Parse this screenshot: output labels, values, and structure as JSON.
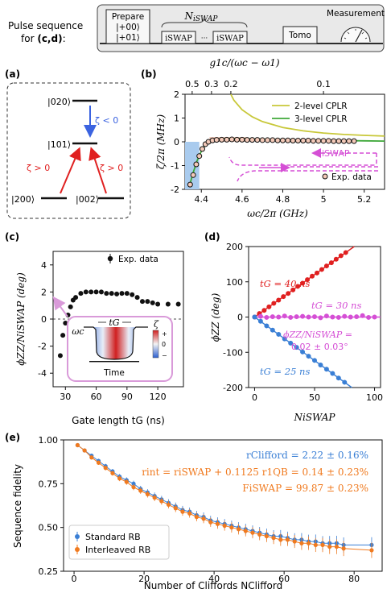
{
  "pulse_sequence": {
    "caption_line1": "Pulse sequence",
    "caption_line2": "for ",
    "caption_ref": "(c,d)",
    "caption_colon": ":",
    "prepare_label": "Prepare",
    "prepare_states": [
      "|+00⟩",
      "|+01⟩"
    ],
    "n_iswap_label": "N",
    "n_iswap_sub": "iSWAP",
    "iswap_gate": "iSWAP",
    "ellipsis": "···",
    "tomo_label": "Tomo",
    "measurement_label": "Measurement"
  },
  "panel_a": {
    "label": "(a)",
    "levels": [
      "|020⟩",
      "|101⟩",
      "|200⟩",
      "|002⟩"
    ],
    "zeta_neg": "ζ < 0",
    "zeta_pos_left": "ζ > 0",
    "zeta_pos_right": "ζ > 0",
    "colors": {
      "blue": "#3b63e0",
      "red": "#e02020"
    }
  },
  "panel_b": {
    "label": "(b)",
    "top_axis_label": "g1c/(ωc − ω1)",
    "annotation": "iSWAP",
    "chart_data": {
      "type": "line",
      "xlabel": "ωc/2π (GHz)",
      "ylabel": "ζ/2π (MHz)",
      "xlim": [
        4.32,
        5.3
      ],
      "ylim": [
        -2,
        2
      ],
      "xticks": [
        4.4,
        4.6,
        4.8,
        5.0,
        5.2
      ],
      "xtick_labels": [
        "4.4",
        "4.6",
        "4.8",
        "5",
        "5.2"
      ],
      "yticks": [
        -2,
        -1,
        0,
        1,
        2
      ],
      "top_ticks": [
        0.5,
        0.3,
        0.2,
        0.1
      ],
      "top_tick_labels": [
        "0.5",
        "0.3",
        "0.2",
        "0.1"
      ],
      "top_tick_x": [
        4.355,
        4.45,
        4.545,
        5.0
      ],
      "series": [
        {
          "name": "2-level CPLR",
          "color": "#c8c83a",
          "x": [
            4.545,
            4.56,
            4.6,
            4.65,
            4.7,
            4.8,
            4.9,
            5.0,
            5.1,
            5.2,
            5.3
          ],
          "y": [
            2.0,
            1.75,
            1.35,
            1.05,
            0.85,
            0.6,
            0.46,
            0.37,
            0.31,
            0.27,
            0.24
          ]
        },
        {
          "name": "3-level CPLR",
          "color": "#3fa83a",
          "x": [
            4.34,
            4.36,
            4.38,
            4.4,
            4.42,
            4.45,
            4.5,
            4.55,
            4.6,
            4.7,
            4.8,
            4.9,
            5.0,
            5.1,
            5.2,
            5.3
          ],
          "y": [
            -1.9,
            -1.3,
            -0.78,
            -0.4,
            -0.12,
            0.05,
            0.13,
            0.14,
            0.13,
            0.11,
            0.09,
            0.07,
            0.06,
            0.05,
            0.04,
            0.03
          ]
        },
        {
          "name": "Exp. data",
          "color": "#000000",
          "type": "scatter",
          "x": [
            4.345,
            4.36,
            4.375,
            4.39,
            4.405,
            4.42,
            4.435,
            4.455,
            4.475,
            4.5,
            4.525,
            4.55,
            4.575,
            4.6,
            4.625,
            4.65,
            4.675,
            4.7,
            4.725,
            4.75,
            4.775,
            4.8,
            4.825,
            4.85,
            4.875,
            4.9,
            4.925,
            4.95,
            4.975,
            5.0,
            5.025,
            5.05,
            5.075,
            5.1,
            5.125,
            5.15
          ],
          "y": [
            -1.8,
            -1.4,
            -0.95,
            -0.6,
            -0.3,
            -0.1,
            0.0,
            0.06,
            0.08,
            0.09,
            0.09,
            0.1,
            0.09,
            0.09,
            0.08,
            0.08,
            0.08,
            0.07,
            0.07,
            0.07,
            0.06,
            0.06,
            0.06,
            0.05,
            0.05,
            0.05,
            0.05,
            0.04,
            0.04,
            0.04,
            0.04,
            0.03,
            0.03,
            0.03,
            0.03,
            0.03
          ]
        }
      ],
      "shaded_region": {
        "x": [
          4.32,
          4.39
        ],
        "color": "#a9cbee"
      },
      "legend": [
        "2-level CPLR",
        "3-level CPLR",
        "Exp. data"
      ],
      "legend_position": "top-right / bottom-right"
    }
  },
  "panel_c": {
    "label": "(c)",
    "inset": {
      "omega": "ωc",
      "t_label": "tG",
      "zeta": "ζ",
      "plus": "+",
      "zero": "0",
      "minus": "−",
      "time": "Time"
    },
    "chart_data": {
      "type": "scatter",
      "xlabel": "Gate length tG (ns)",
      "ylabel": "ϕZZ/NiSWAP (deg)",
      "xlim": [
        18,
        145
      ],
      "ylim": [
        -5,
        5
      ],
      "xticks": [
        30,
        60,
        90,
        120
      ],
      "yticks": [
        -4,
        -2,
        0,
        2,
        4
      ],
      "series": [
        {
          "name": "Exp. data",
          "color": "#000000",
          "x": [
            25,
            27.5,
            30,
            32.5,
            35,
            37.5,
            40,
            45,
            50,
            55,
            60,
            65,
            70,
            75,
            80,
            85,
            90,
            95,
            100,
            105,
            110,
            115,
            120,
            130,
            140
          ],
          "y": [
            -2.7,
            -1.2,
            -0.3,
            0.3,
            0.9,
            1.4,
            1.6,
            1.9,
            2.0,
            2.0,
            2.0,
            2.0,
            1.9,
            1.9,
            1.85,
            1.9,
            1.9,
            1.8,
            1.6,
            1.3,
            1.3,
            1.2,
            1.1,
            1.1,
            1.1
          ]
        }
      ],
      "legend": [
        "Exp. data"
      ],
      "legend_position": "top-right"
    }
  },
  "panel_d": {
    "label": "(d)",
    "annotations": {
      "t40": "tG = 40 ns",
      "t30": "tG = 30 ns",
      "t25": "tG = 25 ns",
      "phi1": "ϕZZ/NiSWAP =",
      "phi2": "0.02 ± 0.03°"
    },
    "chart_data": {
      "type": "scatter",
      "xlabel": "NiSWAP",
      "ylabel": "ϕZZ (deg)",
      "xlim": [
        -5,
        105
      ],
      "ylim": [
        -200,
        200
      ],
      "xticks": [
        0,
        50,
        100
      ],
      "yticks": [
        -200,
        -100,
        0,
        100,
        200
      ],
      "series": [
        {
          "name": "tG = 40 ns",
          "color": "#e02020",
          "x": [
            0,
            4,
            8,
            12,
            16,
            20,
            24,
            28,
            32,
            36,
            40,
            44,
            48,
            52,
            56,
            60,
            64,
            68,
            72,
            76
          ],
          "y": [
            0,
            10,
            19,
            29,
            39,
            48,
            58,
            67,
            77,
            87,
            96,
            106,
            116,
            125,
            135,
            145,
            154,
            164,
            174,
            183
          ]
        },
        {
          "name": "tG = 30 ns",
          "color": "#d54fd5",
          "x": [
            0,
            5,
            10,
            15,
            20,
            25,
            30,
            35,
            40,
            45,
            50,
            55,
            60,
            65,
            70,
            75,
            80,
            85,
            90,
            95,
            100
          ],
          "y": [
            0,
            2,
            -1,
            1,
            0,
            3,
            -1,
            1,
            2,
            0,
            1,
            -2,
            3,
            0,
            -1,
            2,
            0,
            1,
            4,
            -1,
            0
          ]
        },
        {
          "name": "tG = 25 ns",
          "color": "#3a7fd5",
          "x": [
            0,
            5,
            10,
            15,
            20,
            25,
            30,
            35,
            40,
            45,
            50,
            55,
            60,
            65,
            70,
            75
          ],
          "y": [
            0,
            -12,
            -25,
            -37,
            -49,
            -62,
            -74,
            -86,
            -99,
            -111,
            -123,
            -136,
            -148,
            -160,
            -173,
            -185
          ]
        }
      ]
    }
  },
  "panel_e": {
    "label": "(e)",
    "annotations": {
      "r_clifford": "rClifford = 2.22 ± 0.16%",
      "r_int_1": "rint = riSWAP + 0.1125 r1QB = 0.14 ± 0.23%",
      "f_iswap": "FiSWAP = 99.87 ± 0.23%"
    },
    "chart_data": {
      "type": "line",
      "xlabel": "Number of Cliffords NClifford",
      "ylabel": "Sequence fidelity",
      "xlim": [
        -3,
        88
      ],
      "ylim": [
        0.25,
        1.0
      ],
      "xticks": [
        0,
        20,
        40,
        60,
        80
      ],
      "yticks": [
        0.25,
        0.5,
        0.75,
        1.0
      ],
      "ytick_labels": [
        "0.25",
        "0.50",
        "0.75",
        "1.00"
      ],
      "series": [
        {
          "name": "Standard RB",
          "color": "#3a7fd5",
          "x": [
            1,
            3,
            5,
            7,
            9,
            11,
            13,
            15,
            17,
            19,
            21,
            23,
            25,
            27,
            29,
            31,
            33,
            35,
            37,
            39,
            41,
            43,
            45,
            47,
            49,
            51,
            53,
            55,
            57,
            59,
            61,
            63,
            65,
            67,
            69,
            71,
            73,
            75,
            77,
            85
          ],
          "y": [
            0.97,
            0.94,
            0.91,
            0.88,
            0.85,
            0.82,
            0.79,
            0.77,
            0.75,
            0.72,
            0.7,
            0.68,
            0.66,
            0.64,
            0.62,
            0.6,
            0.59,
            0.57,
            0.56,
            0.54,
            0.53,
            0.52,
            0.51,
            0.5,
            0.49,
            0.48,
            0.47,
            0.46,
            0.45,
            0.45,
            0.44,
            0.43,
            0.43,
            0.42,
            0.42,
            0.41,
            0.41,
            0.41,
            0.4,
            0.4
          ]
        },
        {
          "name": "Interleaved RB",
          "color": "#f07a1f",
          "x": [
            1,
            3,
            5,
            7,
            9,
            11,
            13,
            15,
            17,
            19,
            21,
            23,
            25,
            27,
            29,
            31,
            33,
            35,
            37,
            39,
            41,
            43,
            45,
            47,
            49,
            51,
            53,
            55,
            57,
            59,
            61,
            63,
            65,
            67,
            69,
            71,
            73,
            75,
            77,
            85
          ],
          "y": [
            0.97,
            0.94,
            0.9,
            0.87,
            0.84,
            0.81,
            0.78,
            0.76,
            0.73,
            0.71,
            0.69,
            0.67,
            0.65,
            0.63,
            0.61,
            0.59,
            0.58,
            0.56,
            0.55,
            0.53,
            0.52,
            0.51,
            0.5,
            0.49,
            0.48,
            0.47,
            0.46,
            0.45,
            0.44,
            0.43,
            0.43,
            0.42,
            0.41,
            0.41,
            0.4,
            0.4,
            0.39,
            0.39,
            0.38,
            0.37
          ]
        }
      ],
      "legend": [
        "Standard RB",
        "Interleaved RB"
      ],
      "legend_position": "bottom-left"
    }
  }
}
